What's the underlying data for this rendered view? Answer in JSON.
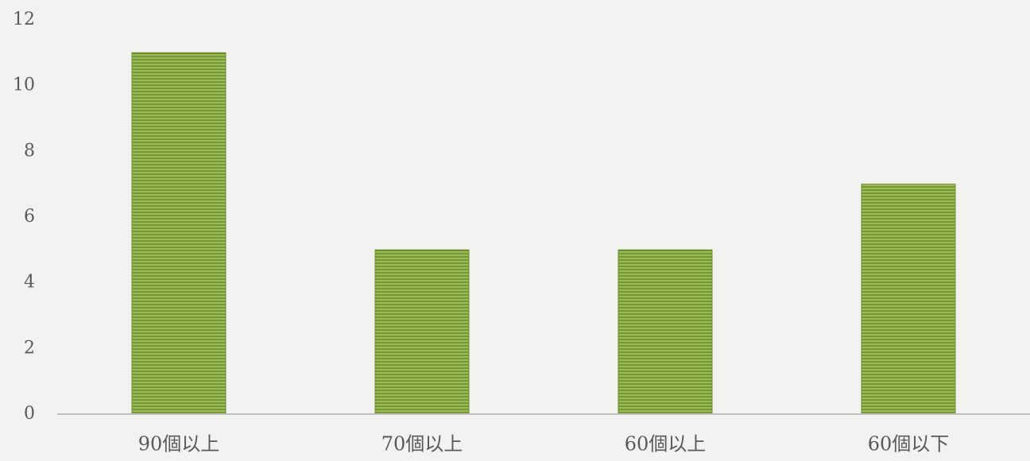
{
  "chart_data": {
    "type": "bar",
    "categories": [
      "90個以上",
      "70個以上",
      "60個以上",
      "60個以下"
    ],
    "values": [
      11,
      5,
      5,
      7
    ],
    "ylim": [
      0,
      12
    ],
    "yticks": [
      0,
      2,
      4,
      6,
      8,
      10,
      12
    ],
    "grid": false,
    "legend": "none",
    "colors": {
      "bar_fill": "#9bbb59",
      "bar_stripe": "#6e8f2e",
      "axis": "#bfbfbf",
      "text": "#595959",
      "background": "#f2f2f1"
    }
  }
}
